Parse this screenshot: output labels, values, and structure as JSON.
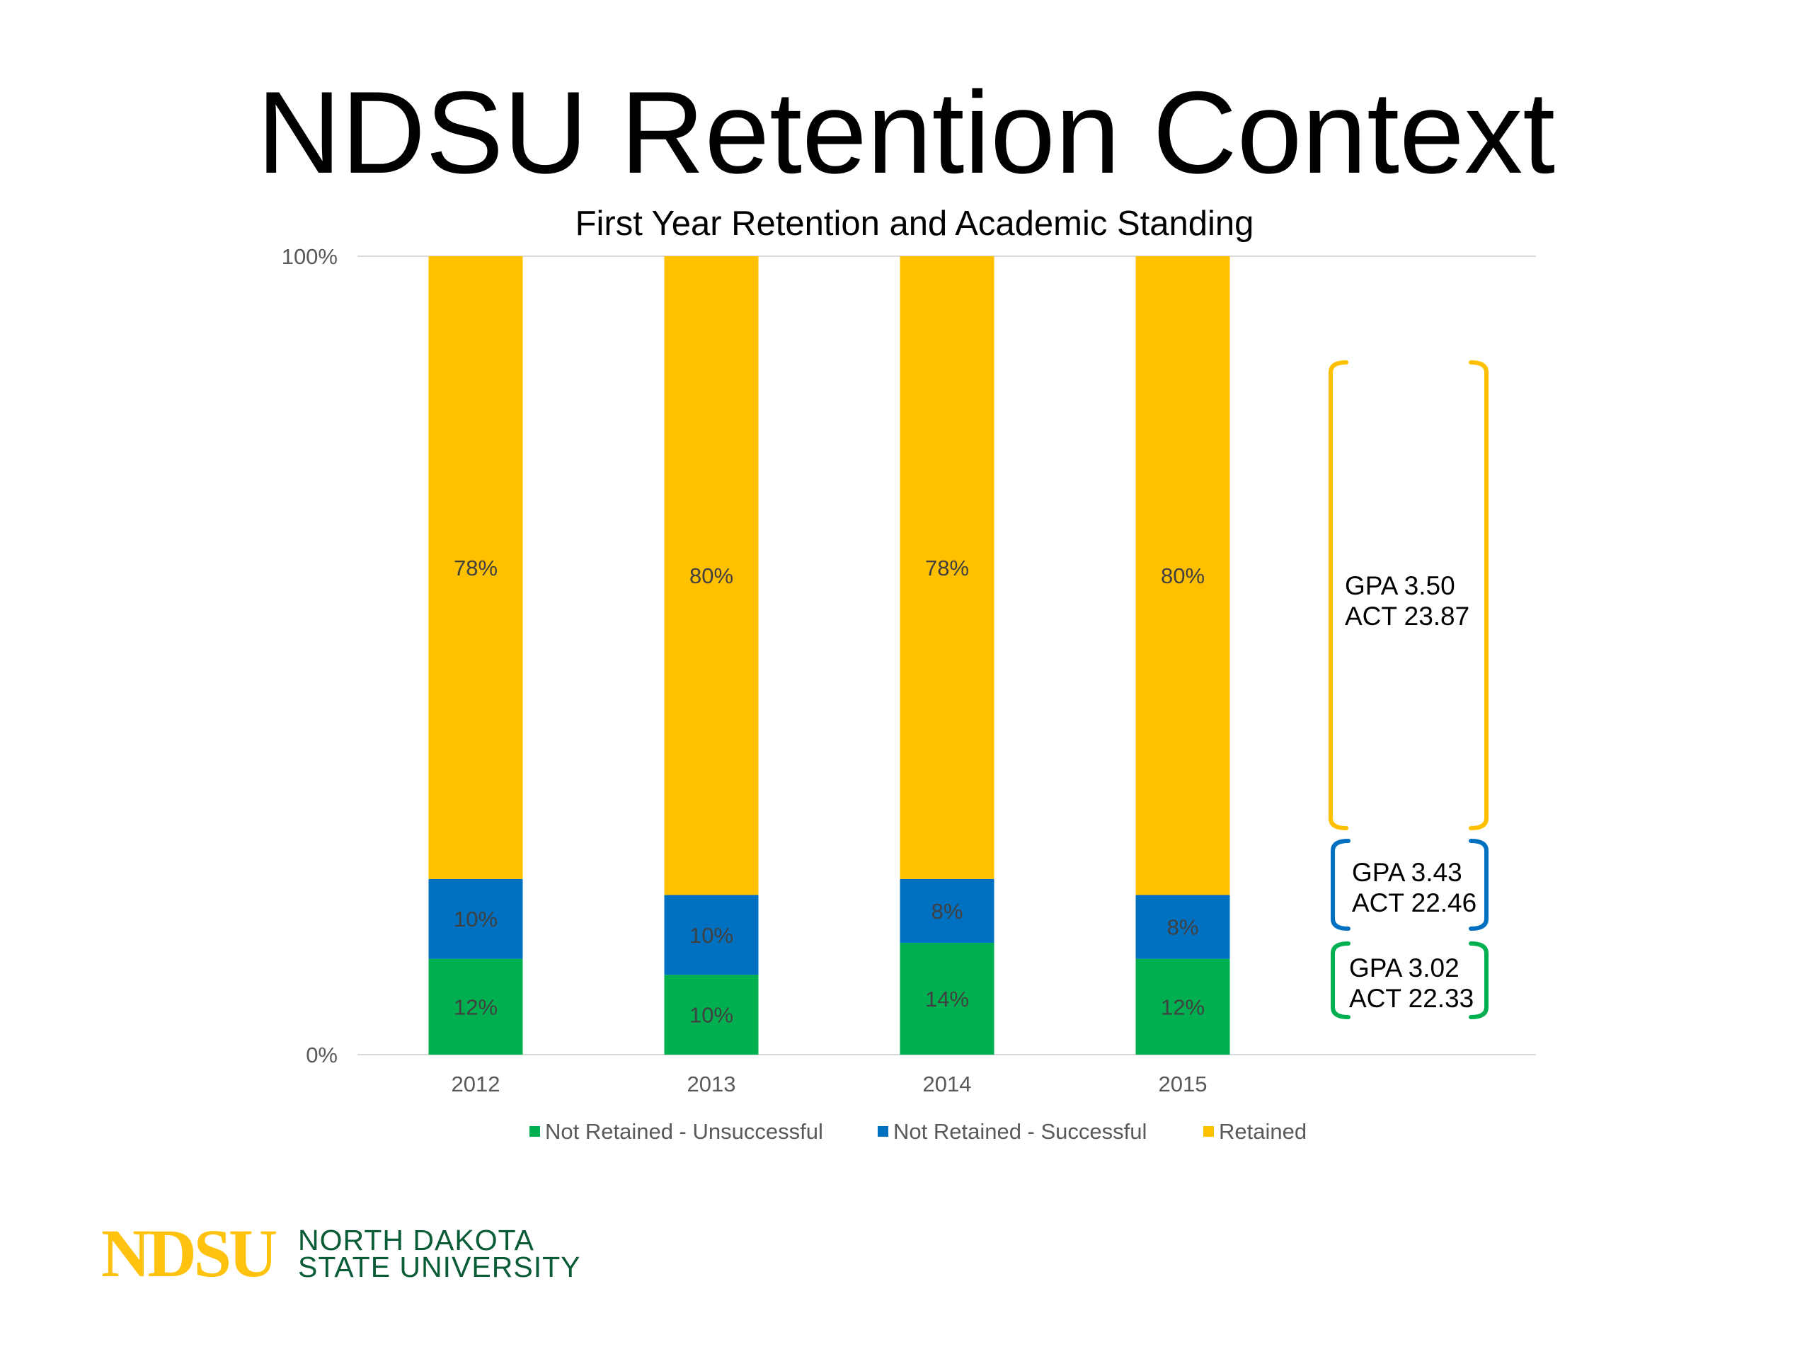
{
  "slide": {
    "title": "NDSU Retention Context"
  },
  "chart_data": {
    "type": "bar",
    "stacked": true,
    "percent_stacked": true,
    "title": "First Year Retention and Academic Standing",
    "categories": [
      "2012",
      "2013",
      "2014",
      "2015"
    ],
    "y_ticks": [
      "0%",
      "100%"
    ],
    "ylim": [
      0,
      100
    ],
    "grid": true,
    "legend_position": "bottom",
    "series": [
      {
        "name": "Not Retained - Unsuccessful",
        "color": "#00B050",
        "values": [
          12,
          10,
          14,
          12
        ],
        "labels": [
          "12%",
          "10%",
          "14%",
          "12%"
        ]
      },
      {
        "name": "Not Retained - Successful",
        "color": "#0070C0",
        "values": [
          10,
          10,
          8,
          8
        ],
        "labels": [
          "10%",
          "10%",
          "8%",
          "8%"
        ]
      },
      {
        "name": "Retained",
        "color": "#FFC000",
        "values": [
          78,
          80,
          78,
          80
        ],
        "labels": [
          "78%",
          "80%",
          "78%",
          "80%"
        ]
      }
    ],
    "annotations": [
      {
        "series": "Retained",
        "color": "#FFC000",
        "lines": [
          "GPA 3.50",
          "ACT 23.87"
        ]
      },
      {
        "series": "Not Retained - Successful",
        "color": "#0070C0",
        "lines": [
          "GPA 3.43",
          "ACT 22.46"
        ]
      },
      {
        "series": "Not Retained - Unsuccessful",
        "color": "#00B050",
        "lines": [
          "GPA 3.02",
          "ACT 22.33"
        ]
      }
    ]
  },
  "logo": {
    "mark": "NDSU",
    "line1": "NORTH DAKOTA",
    "line2": "STATE UNIVERSITY"
  }
}
